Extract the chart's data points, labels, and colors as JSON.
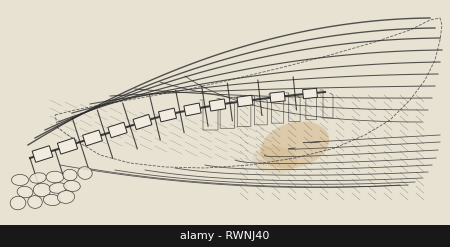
{
  "background_color": "#e8e2d2",
  "fig_width": 4.5,
  "fig_height": 2.47,
  "dpi": 100,
  "watermark_text": "alamy - RWNJ40",
  "watermark_fontsize": 8,
  "tan_stain_color": "#c8a060",
  "tan_stain_alpha": 0.35,
  "line_color": "#2a2a2a",
  "spine_color": "#1a1a1a",
  "bg_light": "#ede8da"
}
